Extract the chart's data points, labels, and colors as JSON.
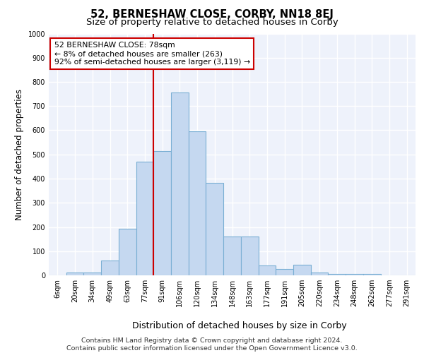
{
  "title_line1": "52, BERNESHAW CLOSE, CORBY, NN18 8EJ",
  "title_line2": "Size of property relative to detached houses in Corby",
  "xlabel": "Distribution of detached houses by size in Corby",
  "ylabel": "Number of detached properties",
  "footnote": "Contains HM Land Registry data © Crown copyright and database right 2024.\nContains public sector information licensed under the Open Government Licence v3.0.",
  "annotation_line1": "52 BERNESHAW CLOSE: 78sqm",
  "annotation_line2": "← 8% of detached houses are smaller (263)",
  "annotation_line3": "92% of semi-detached houses are larger (3,119) →",
  "bar_values": [
    0,
    13,
    13,
    62,
    193,
    470,
    515,
    757,
    596,
    383,
    160,
    160,
    40,
    25,
    45,
    12,
    7,
    5,
    5,
    0,
    0
  ],
  "bar_labels": [
    "6sqm",
    "20sqm",
    "34sqm",
    "49sqm",
    "63sqm",
    "77sqm",
    "91sqm",
    "106sqm",
    "120sqm",
    "134sqm",
    "148sqm",
    "163sqm",
    "177sqm",
    "191sqm",
    "205sqm",
    "220sqm",
    "234sqm",
    "248sqm",
    "262sqm",
    "277sqm",
    "291sqm"
  ],
  "bar_color": "#c5d8f0",
  "bar_edge_color": "#7aafd4",
  "vline_x": 5.5,
  "vline_color": "#cc0000",
  "annotation_box_color": "#cc0000",
  "ylim": [
    0,
    1000
  ],
  "yticks": [
    0,
    100,
    200,
    300,
    400,
    500,
    600,
    700,
    800,
    900,
    1000
  ],
  "background_color": "#eef2fb",
  "grid_color": "#ffffff",
  "title1_fontsize": 10.5,
  "title2_fontsize": 9.5,
  "tick_fontsize": 7,
  "ylabel_fontsize": 8.5,
  "xlabel_fontsize": 9,
  "annotation_fontsize": 7.8,
  "footnote_fontsize": 6.8
}
